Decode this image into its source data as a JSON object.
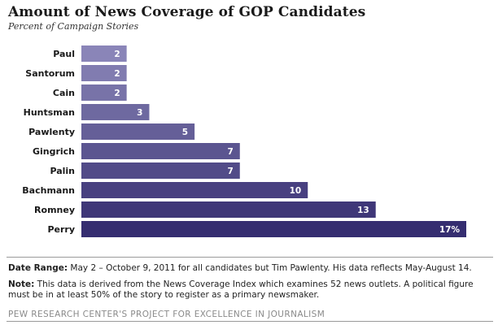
{
  "header": {
    "title": "Amount of News Coverage of GOP Candidates",
    "subtitle": "Percent of Campaign Stories"
  },
  "chart_data": {
    "type": "bar",
    "orientation": "horizontal",
    "title": "Amount of News Coverage of GOP Candidates",
    "subtitle": "Percent of Campaign Stories",
    "categories": [
      "Paul",
      "Santorum",
      "Cain",
      "Huntsman",
      "Pawlenty",
      "Gingrich",
      "Palin",
      "Bachmann",
      "Romney",
      "Perry"
    ],
    "values": [
      2,
      2,
      2,
      3,
      5,
      7,
      7,
      10,
      13,
      17
    ],
    "value_labels": [
      "2",
      "2",
      "2",
      "3",
      "5",
      "7",
      "7",
      "10",
      "13",
      "17%"
    ],
    "xlim": [
      0,
      17
    ],
    "grid": false,
    "colors": [
      "#8a85b8",
      "#817cb0",
      "#7873a8",
      "#6e69a0",
      "#655f98",
      "#5b5590",
      "#524b88",
      "#484080",
      "#3f3778",
      "#352d70"
    ]
  },
  "footer": {
    "date_range_label": "Date Range:",
    "date_range_text": " May 2 – October 9, 2011 for all candidates but Tim Pawlenty. His data reflects May-August 14.",
    "note_label": "Note:",
    "note_text": " This data is derived from the News Coverage Index which examines 52 news outlets. A political figure must be in at least 50% of the story to register as a primary newsmaker.",
    "source": "PEW RESEARCH CENTER'S PROJECT FOR EXCELLENCE IN JOURNALISM"
  }
}
